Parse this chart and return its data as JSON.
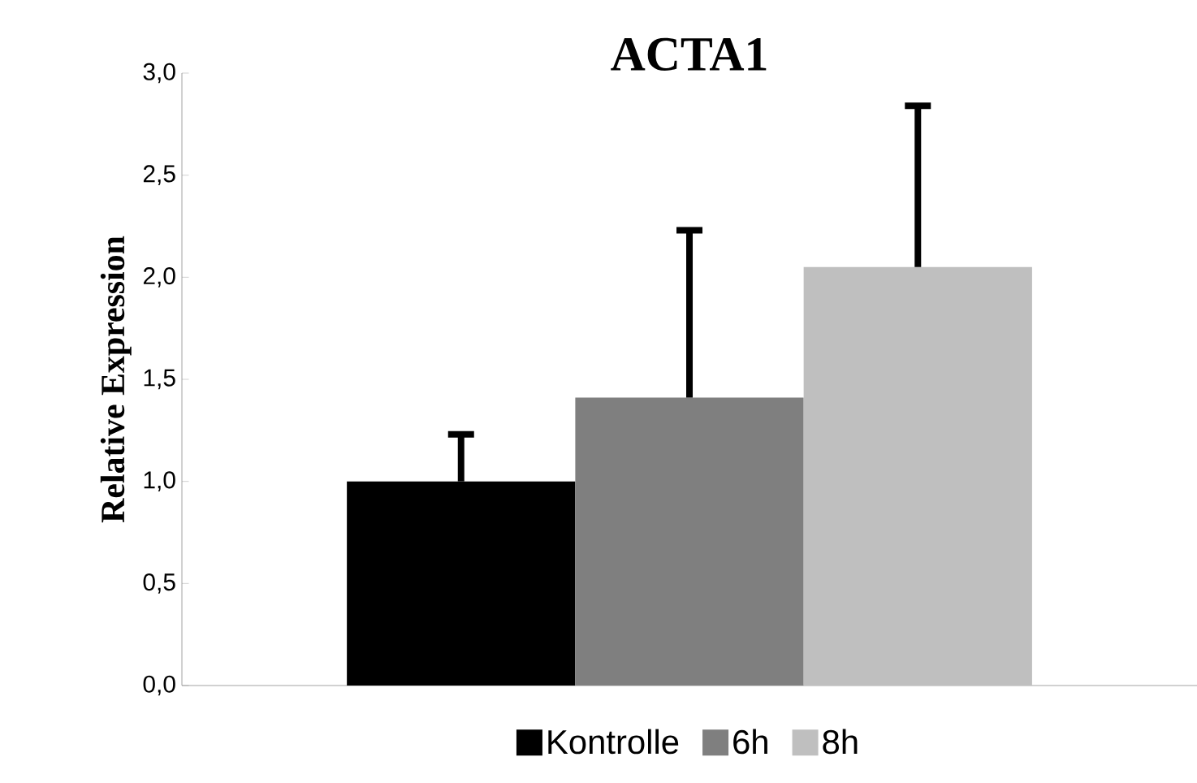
{
  "chart_data": {
    "type": "bar",
    "title": "ACTA1",
    "ylabel": "Relative Expression",
    "categories": [
      null
    ],
    "series": [
      {
        "name": "Kontrolle",
        "color": "#000000",
        "values": [
          1.0
        ],
        "errors": [
          [
            1.0,
            1.23
          ]
        ]
      },
      {
        "name": "6h",
        "color": "#7f7f7f",
        "values": [
          1.41
        ],
        "errors": [
          [
            1.41,
            2.23
          ]
        ]
      },
      {
        "name": "8h",
        "color": "#bfbfbf",
        "values": [
          2.05
        ],
        "errors": [
          [
            2.05,
            2.84
          ]
        ]
      }
    ],
    "ylim": [
      0,
      3
    ],
    "yticks": [
      {
        "value": 0,
        "label": "0,0"
      },
      {
        "value": 0.5,
        "label": "0,5"
      },
      {
        "value": 1,
        "label": "1,0"
      },
      {
        "value": 1.5,
        "label": "1,5"
      },
      {
        "value": 2,
        "label": "2,0"
      },
      {
        "value": 2.5,
        "label": "2,5"
      },
      {
        "value": 3,
        "label": "3,0"
      }
    ],
    "grid": false,
    "legend": "bottom"
  }
}
